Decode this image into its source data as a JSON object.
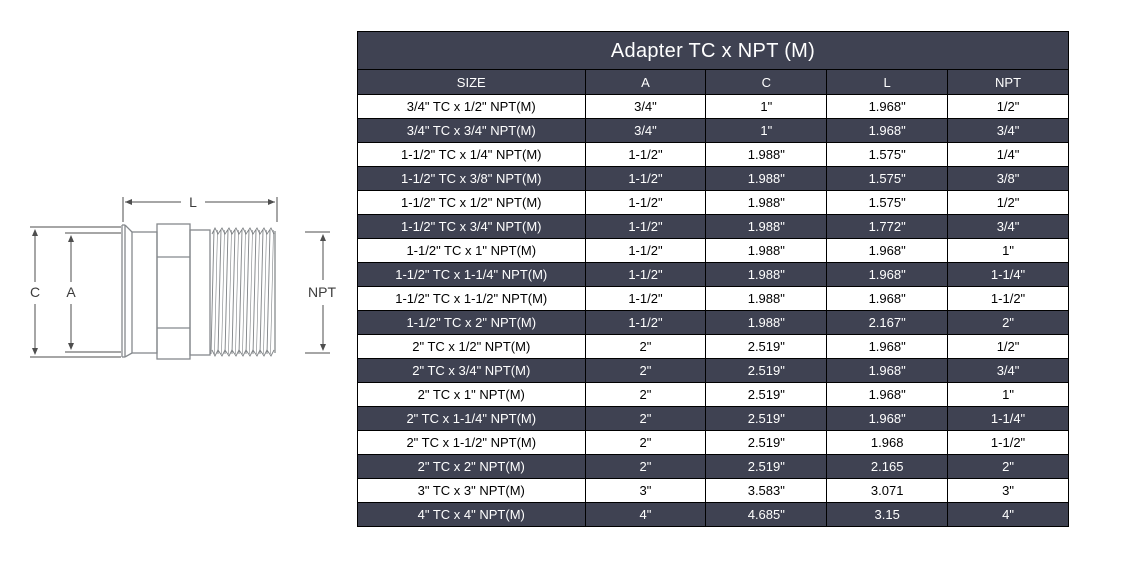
{
  "colors": {
    "table_dark_bg": "#3F4252",
    "table_light_bg": "#FFFFFF",
    "table_dark_text": "#FFFFFF",
    "table_light_text": "#000000",
    "table_border": "#000000",
    "drawing_line": "#85898d",
    "dimension_line": "#4e4e4e"
  },
  "diagram": {
    "labels": {
      "l": "L",
      "c": "C",
      "a": "A",
      "npt": "NPT"
    }
  },
  "table": {
    "title": "Adapter TC x NPT (M)",
    "columns": [
      "SIZE",
      "A",
      "C",
      "L",
      "NPT"
    ],
    "rows": [
      [
        "3/4\" TC x 1/2\" NPT(M)",
        "3/4\"",
        "1\"",
        "1.968\"",
        "1/2\""
      ],
      [
        "3/4\" TC x 3/4\" NPT(M)",
        "3/4\"",
        "1\"",
        "1.968\"",
        "3/4\""
      ],
      [
        "1-1/2\" TC x 1/4\" NPT(M)",
        "1-1/2\"",
        "1.988\"",
        "1.575\"",
        "1/4\""
      ],
      [
        "1-1/2\" TC x 3/8\" NPT(M)",
        "1-1/2\"",
        "1.988\"",
        "1.575\"",
        "3/8\""
      ],
      [
        "1-1/2\" TC x 1/2\" NPT(M)",
        "1-1/2\"",
        "1.988\"",
        "1.575\"",
        "1/2\""
      ],
      [
        "1-1/2\" TC x 3/4\" NPT(M)",
        "1-1/2\"",
        "1.988\"",
        "1.772\"",
        "3/4\""
      ],
      [
        "1-1/2\" TC x 1\" NPT(M)",
        "1-1/2\"",
        "1.988\"",
        "1.968\"",
        "1\""
      ],
      [
        "1-1/2\" TC x 1-1/4\" NPT(M)",
        "1-1/2\"",
        "1.988\"",
        "1.968\"",
        "1-1/4\""
      ],
      [
        "1-1/2\" TC x 1-1/2\" NPT(M)",
        "1-1/2\"",
        "1.988\"",
        "1.968\"",
        "1-1/2\""
      ],
      [
        "1-1/2\" TC x 2\" NPT(M)",
        "1-1/2\"",
        "1.988\"",
        "2.167\"",
        "2\""
      ],
      [
        "2\" TC x 1/2\" NPT(M)",
        "2\"",
        "2.519\"",
        "1.968\"",
        "1/2\""
      ],
      [
        "2\" TC x 3/4\" NPT(M)",
        "2\"",
        "2.519\"",
        "1.968\"",
        "3/4\""
      ],
      [
        "2\" TC x 1\" NPT(M)",
        "2\"",
        "2.519\"",
        "1.968\"",
        "1\""
      ],
      [
        "2\" TC x 1-1/4\" NPT(M)",
        "2\"",
        "2.519\"",
        "1.968\"",
        "1-1/4\""
      ],
      [
        "2\" TC x 1-1/2\" NPT(M)",
        "2\"",
        "2.519\"",
        "1.968",
        "1-1/2\""
      ],
      [
        "2\" TC x 2\" NPT(M)",
        "2\"",
        "2.519\"",
        "2.165",
        "2\""
      ],
      [
        "3\" TC x 3\" NPT(M)",
        "3\"",
        "3.583\"",
        "3.071",
        "3\""
      ],
      [
        "4\" TC x 4\" NPT(M)",
        "4\"",
        "4.685\"",
        "3.15",
        "4\""
      ]
    ]
  }
}
